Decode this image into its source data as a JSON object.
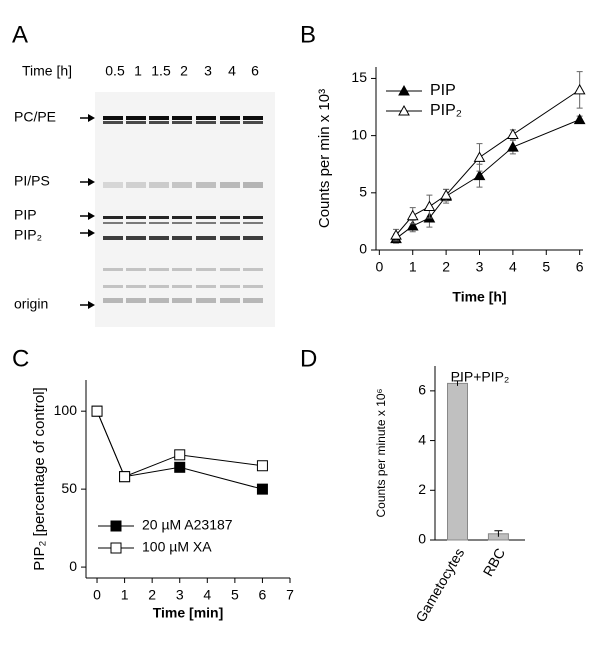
{
  "gel": {
    "panel_label": "A",
    "time_label": "Time [h]",
    "lanes": [
      "0.5",
      "1",
      "1.5",
      "2",
      "3",
      "4",
      "6"
    ],
    "bands": [
      "PC/PE",
      "PI/PS",
      "PIP",
      "PIP₂",
      "origin"
    ]
  },
  "chart_data": [
    {
      "type": "line",
      "panel_label": "B",
      "x_label": "Time [h]",
      "y_label": "Counts per min x 10³",
      "x": [
        0.5,
        1,
        1.5,
        2,
        3,
        4,
        6
      ],
      "series": [
        {
          "name": "PIP",
          "color": "#000000",
          "marker": "triangle-filled",
          "values": [
            1.0,
            2.1,
            2.8,
            4.7,
            6.5,
            9.0,
            11.4
          ],
          "errors": [
            0.4,
            0.5,
            0.8,
            0.6,
            1.0,
            0.6,
            0.3
          ]
        },
        {
          "name": "PIP₂",
          "color": "#000000",
          "marker": "triangle-open",
          "values": [
            1.3,
            3.0,
            3.8,
            4.8,
            8.1,
            10.1,
            14.0
          ],
          "errors": [
            0.5,
            0.7,
            1.0,
            0.5,
            1.2,
            0.4,
            1.6
          ]
        }
      ],
      "xlim": [
        -0.1,
        6.1
      ],
      "xticks": [
        0,
        1,
        2,
        3,
        4,
        5,
        6
      ],
      "ylim": [
        0,
        16
      ],
      "yticks": [
        0,
        5,
        10,
        15
      ],
      "legend": "upper left"
    },
    {
      "type": "line",
      "panel_label": "C",
      "x_label": "Time [min]",
      "y_label": "PIP₂ [percentage of control]",
      "x": [
        0,
        1,
        3,
        6
      ],
      "series": [
        {
          "name": "20 µM A23187",
          "color": "#000000",
          "marker": "square-filled",
          "values": [
            100,
            58,
            64,
            50
          ]
        },
        {
          "name": "100 µM XA",
          "color": "#000000",
          "marker": "square-open",
          "values": [
            100,
            58,
            72,
            65
          ]
        }
      ],
      "xlim": [
        -0.4,
        7
      ],
      "xticks": [
        0,
        1,
        2,
        3,
        4,
        5,
        6,
        7
      ],
      "ylim": [
        -7,
        120
      ],
      "yticks": [
        0,
        50,
        100
      ],
      "legend": "lower left"
    },
    {
      "type": "bar",
      "panel_label": "D",
      "title": "PIP+PIP₂",
      "y_label": "Counts per minute x 10⁶",
      "categories": [
        "Gametocytes",
        "RBC"
      ],
      "values": [
        6.3,
        0.25
      ],
      "errors": [
        0.1,
        0.12
      ],
      "color": "#c0c0c0",
      "ylim": [
        0,
        7
      ],
      "yticks": [
        0,
        2,
        4,
        6
      ]
    }
  ]
}
